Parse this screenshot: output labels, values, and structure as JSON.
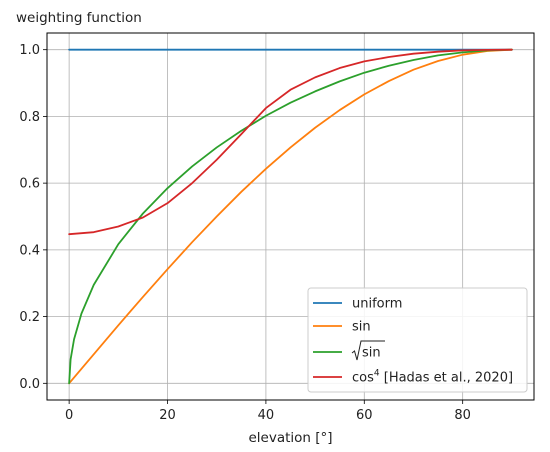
{
  "chart_data": {
    "type": "line",
    "title": "",
    "ylabel": "weighting function",
    "xlabel": "elevation [°]",
    "xlim": [
      -4.5,
      94.5
    ],
    "ylim": [
      -0.05,
      1.05
    ],
    "xticks": [
      0,
      20,
      40,
      60,
      80
    ],
    "xtick_labels": [
      "0",
      "20",
      "40",
      "60",
      "80"
    ],
    "yticks": [
      0.0,
      0.2,
      0.4,
      0.6,
      0.8,
      1.0
    ],
    "ytick_labels": [
      "0.0",
      "0.2",
      "0.4",
      "0.6",
      "0.8",
      "1.0"
    ],
    "grid": true,
    "legend_position": "bottom-right",
    "x": [
      0,
      5,
      10,
      15,
      20,
      25,
      30,
      35,
      40,
      45,
      50,
      55,
      60,
      65,
      70,
      75,
      80,
      85,
      90
    ],
    "series": [
      {
        "name": "uniform",
        "legend_main": "uniform",
        "legend_suffix": "",
        "color": "#1f77b4",
        "values": [
          1.0,
          1.0,
          1.0,
          1.0,
          1.0,
          1.0,
          1.0,
          1.0,
          1.0,
          1.0,
          1.0,
          1.0,
          1.0,
          1.0,
          1.0,
          1.0,
          1.0,
          1.0,
          1.0
        ]
      },
      {
        "name": "sin",
        "legend_main": "sin",
        "legend_suffix": "",
        "color": "#ff7f0e",
        "values": [
          0.0,
          0.087,
          0.174,
          0.259,
          0.342,
          0.423,
          0.5,
          0.574,
          0.643,
          0.707,
          0.766,
          0.819,
          0.866,
          0.906,
          0.94,
          0.966,
          0.985,
          0.996,
          1.0
        ]
      },
      {
        "name": "√sin",
        "legend_main": "sin",
        "legend_suffix": "",
        "color": "#2ca02c",
        "values": [
          0.0,
          0.295,
          0.417,
          0.509,
          0.585,
          0.65,
          0.707,
          0.757,
          0.802,
          0.841,
          0.875,
          0.905,
          0.931,
          0.952,
          0.969,
          0.983,
          0.992,
          0.998,
          1.0
        ]
      },
      {
        "name": "cos⁴ [Hadas et al., 2020]",
        "legend_main": "cos",
        "legend_sup": "4",
        "legend_suffix": " [Hadas et al., 2020]",
        "color": "#d62728",
        "values": [
          0.447,
          0.453,
          0.47,
          0.497,
          0.54,
          0.6,
          0.67,
          0.747,
          0.825,
          0.88,
          0.917,
          0.945,
          0.965,
          0.978,
          0.988,
          0.994,
          0.998,
          0.9995,
          1.0
        ]
      }
    ]
  }
}
